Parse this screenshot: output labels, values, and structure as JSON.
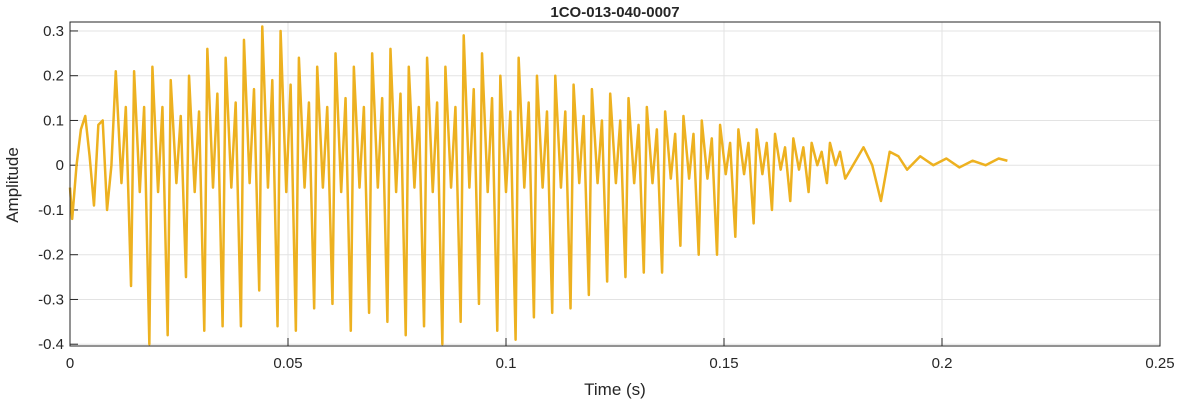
{
  "chart_data": {
    "type": "line",
    "title": "1CO-013-040-0007",
    "xlabel": "Time (s)",
    "ylabel": "Amplitude",
    "xlim": [
      0,
      0.25
    ],
    "ylim": [
      -0.404,
      0.32
    ],
    "xticks": [
      0,
      0.05,
      0.1,
      0.15,
      0.2,
      0.25
    ],
    "yticks": [
      -0.4,
      -0.3,
      -0.2,
      -0.1,
      0,
      0.1,
      0.2,
      0.3
    ],
    "grid": true,
    "series": [
      {
        "color": "#EDB120",
        "x": [
          0,
          0.0005,
          0.0015,
          0.0025,
          0.0035,
          0.0045,
          0.0055,
          0.0065,
          0.0075,
          0.0085,
          0.0095,
          0.0105,
          0.0118,
          0.0128,
          0.014,
          0.0147,
          0.016,
          0.017,
          0.0182,
          0.0189,
          0.0202,
          0.0212,
          0.0224,
          0.0231,
          0.0244,
          0.0254,
          0.0266,
          0.0273,
          0.0286,
          0.0296,
          0.0308,
          0.0315,
          0.0328,
          0.0338,
          0.035,
          0.0357,
          0.037,
          0.038,
          0.0392,
          0.0399,
          0.0412,
          0.0422,
          0.0434,
          0.0441,
          0.0454,
          0.0464,
          0.0476,
          0.0483,
          0.0496,
          0.0506,
          0.0518,
          0.0525,
          0.0538,
          0.0548,
          0.056,
          0.0567,
          0.058,
          0.059,
          0.0602,
          0.0609,
          0.0622,
          0.0632,
          0.0644,
          0.0651,
          0.0664,
          0.0674,
          0.0686,
          0.0693,
          0.0706,
          0.0716,
          0.0728,
          0.0735,
          0.0748,
          0.0758,
          0.077,
          0.0777,
          0.079,
          0.08,
          0.0812,
          0.0819,
          0.0832,
          0.0842,
          0.0854,
          0.0861,
          0.0874,
          0.0884,
          0.0896,
          0.0903,
          0.0916,
          0.0926,
          0.0938,
          0.0945,
          0.0958,
          0.0968,
          0.098,
          0.0987,
          0.1,
          0.101,
          0.1022,
          0.1029,
          0.1042,
          0.1052,
          0.1064,
          0.1071,
          0.1084,
          0.1094,
          0.1106,
          0.1113,
          0.1126,
          0.1136,
          0.1148,
          0.1155,
          0.1168,
          0.1178,
          0.119,
          0.1197,
          0.121,
          0.122,
          0.1232,
          0.1239,
          0.1252,
          0.1262,
          0.1274,
          0.1281,
          0.1294,
          0.1304,
          0.1316,
          0.1323,
          0.1336,
          0.1346,
          0.1358,
          0.1365,
          0.1378,
          0.1388,
          0.14,
          0.1407,
          0.142,
          0.143,
          0.1442,
          0.1449,
          0.1462,
          0.1472,
          0.1484,
          0.1491,
          0.1504,
          0.1514,
          0.1526,
          0.1533,
          0.1546,
          0.1556,
          0.1568,
          0.1575,
          0.1588,
          0.1598,
          0.161,
          0.1617,
          0.163,
          0.164,
          0.1652,
          0.1659,
          0.1672,
          0.1682,
          0.1694,
          0.1701,
          0.1714,
          0.1724,
          0.1736,
          0.1743,
          0.1756,
          0.1766,
          0.1778,
          0.182,
          0.184,
          0.186,
          0.188,
          0.19,
          0.192,
          0.195,
          0.198,
          0.201,
          0.204,
          0.207,
          0.21,
          0.213,
          0.215
        ],
        "values": [
          -0.05,
          -0.12,
          0.0,
          0.08,
          0.11,
          0.02,
          -0.09,
          0.09,
          0.1,
          -0.1,
          0.0,
          0.21,
          -0.04,
          0.13,
          -0.27,
          0.21,
          -0.06,
          0.13,
          -0.4,
          0.22,
          -0.06,
          0.13,
          -0.38,
          0.19,
          -0.04,
          0.11,
          -0.25,
          0.2,
          -0.06,
          0.12,
          -0.37,
          0.26,
          -0.05,
          0.16,
          -0.36,
          0.24,
          -0.05,
          0.14,
          -0.36,
          0.28,
          -0.04,
          0.17,
          -0.28,
          0.31,
          -0.05,
          0.19,
          -0.36,
          0.3,
          -0.06,
          0.18,
          -0.37,
          0.24,
          -0.05,
          0.14,
          -0.32,
          0.22,
          -0.05,
          0.13,
          -0.31,
          0.25,
          -0.06,
          0.15,
          -0.37,
          0.22,
          -0.05,
          0.13,
          -0.33,
          0.25,
          -0.05,
          0.15,
          -0.35,
          0.26,
          -0.06,
          0.16,
          -0.38,
          0.22,
          -0.05,
          0.13,
          -0.36,
          0.24,
          -0.06,
          0.14,
          -0.4,
          0.22,
          -0.05,
          0.13,
          -0.35,
          0.29,
          -0.05,
          0.17,
          -0.31,
          0.25,
          -0.06,
          0.15,
          -0.37,
          0.2,
          -0.06,
          0.12,
          -0.39,
          0.24,
          -0.05,
          0.14,
          -0.34,
          0.2,
          -0.05,
          0.12,
          -0.33,
          0.2,
          -0.05,
          0.12,
          -0.32,
          0.18,
          -0.04,
          0.11,
          -0.29,
          0.17,
          -0.04,
          0.1,
          -0.26,
          0.16,
          -0.04,
          0.1,
          -0.25,
          0.15,
          -0.04,
          0.09,
          -0.24,
          0.13,
          -0.04,
          0.08,
          -0.24,
          0.12,
          -0.03,
          0.07,
          -0.18,
          0.11,
          -0.03,
          0.07,
          -0.2,
          0.1,
          -0.03,
          0.06,
          -0.2,
          0.09,
          -0.02,
          0.05,
          -0.16,
          0.08,
          -0.02,
          0.05,
          -0.13,
          0.08,
          -0.02,
          0.05,
          -0.1,
          0.07,
          -0.01,
          0.04,
          -0.08,
          0.06,
          -0.01,
          0.04,
          -0.06,
          0.05,
          0,
          0.03,
          -0.04,
          0.05,
          0,
          0.03,
          -0.03,
          0.04,
          0.0,
          -0.08,
          0.03,
          0.02,
          -0.01,
          0.02,
          0.0,
          0.015,
          -0.005,
          0.01,
          0.0,
          0.015,
          0.01
        ]
      }
    ]
  }
}
